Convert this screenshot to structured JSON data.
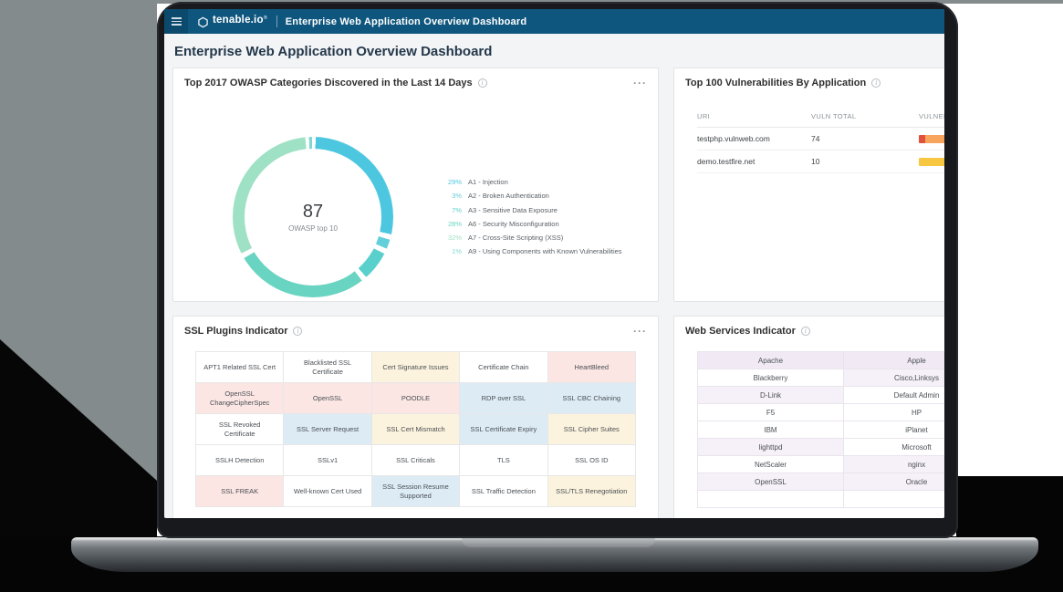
{
  "topbar": {
    "brand": "tenable.io",
    "reg": "®",
    "title": "Enterprise Web Application Overview Dashboard"
  },
  "page": {
    "title": "Enterprise Web Application Overview Dashboard"
  },
  "icons": {
    "menu": "hamburger-icon",
    "brand": "hexagon-logo-icon",
    "info": "info-circle-icon",
    "panel_menu": "ellipsis-icon"
  },
  "chart_data": {
    "type": "pie",
    "donut": true,
    "title": "Top 2017 OWASP Categories Discovered in the Last 14 Days",
    "center_value": "87",
    "center_label": "OWASP top 10",
    "legend_position": "right",
    "segments": [
      {
        "label": "A1 - Injection",
        "pct": 29,
        "color": "#4dc7e0"
      },
      {
        "label": "A2 - Broken Authentication",
        "pct": 3,
        "color": "#63cfda"
      },
      {
        "label": "A3 - Sensitive Data Exposure",
        "pct": 7,
        "color": "#5ad0cc"
      },
      {
        "label": "A6 - Security Misconfiguration",
        "pct": 28,
        "color": "#69d4c1"
      },
      {
        "label": "A7 - Cross-Site Scripting (XSS)",
        "pct": 32,
        "color": "#9fe1c5"
      },
      {
        "label": "A9 - Using Components with Known Vulnerabilities",
        "pct": 1,
        "color": "#7fd9d2"
      }
    ]
  },
  "owasp": {
    "title": "Top 2017 OWASP Categories Discovered in the Last 14 Days",
    "info": "i",
    "menu": "···"
  },
  "vuln": {
    "title": "Top 100 Vulnerabilities By Application",
    "info": "i",
    "menu": "···",
    "columns": [
      "URI",
      "VULN TOTAL",
      "VULNERABILITIES"
    ],
    "rows": [
      {
        "uri": "testphp.vulnweb.com",
        "total": "74",
        "bar": [
          {
            "color": "#e0523c",
            "width": 7
          },
          {
            "color": "#f9a45c",
            "width": 105
          }
        ]
      },
      {
        "uri": "demo.testfire.net",
        "total": "10",
        "bar": [
          {
            "color": "#f8c742",
            "width": 88
          }
        ]
      }
    ]
  },
  "ssl": {
    "title": "SSL Plugins Indicator",
    "info": "i",
    "menu": "···",
    "cells": [
      [
        "APT1 Related SSL Cert",
        "white"
      ],
      [
        "Blacklisted SSL Certificate",
        "white"
      ],
      [
        "Cert Signature Issues",
        "cream"
      ],
      [
        "Certificate Chain",
        "white"
      ],
      [
        "HeartBleed",
        "pink"
      ],
      [
        "OpenSSL ChangeCipherSpec",
        "pink"
      ],
      [
        "OpenSSL",
        "pink"
      ],
      [
        "POODLE",
        "pink"
      ],
      [
        "RDP over SSL",
        "blue"
      ],
      [
        "SSL CBC Chaining",
        "blue"
      ],
      [
        "SSL Revoked Certificate",
        "white"
      ],
      [
        "SSL Server Request",
        "blue"
      ],
      [
        "SSL Cert Mismatch",
        "cream"
      ],
      [
        "SSL Certificate Expiry",
        "blue"
      ],
      [
        "SSL Cipher Suites",
        "cream"
      ],
      [
        "SSLH Detection",
        "white"
      ],
      [
        "SSLv1",
        "white"
      ],
      [
        "SSL Criticals",
        "white"
      ],
      [
        "TLS",
        "white"
      ],
      [
        "SSL OS ID",
        "white"
      ],
      [
        "SSL FREAK",
        "pink"
      ],
      [
        "Well-known Cert Used",
        "white"
      ],
      [
        "SSL Session Resume Supported",
        "blue"
      ],
      [
        "SSL Traffic Detection",
        "white"
      ],
      [
        "SSL/TLS Renegotiation",
        "cream"
      ]
    ]
  },
  "web": {
    "title": "Web Services Indicator",
    "info": "i",
    "menu": "···",
    "rows": [
      [
        "Apache",
        "lavd",
        "Apple",
        "lavd"
      ],
      [
        "Blackberry",
        "white",
        "Cisco,Linksys",
        "lav"
      ],
      [
        "D-Link",
        "lav",
        "Default Admin",
        "white"
      ],
      [
        "F5",
        "white",
        "HP",
        "white"
      ],
      [
        "IBM",
        "white",
        "iPlanet",
        "white"
      ],
      [
        "lighttpd",
        "lav",
        "Microsoft",
        "white"
      ],
      [
        "NetScaler",
        "white",
        "nginx",
        "lav"
      ],
      [
        "OpenSSL",
        "lav",
        "Oracle",
        "lav"
      ],
      [
        "",
        "white",
        "",
        "white"
      ]
    ]
  },
  "colors": {
    "white": "#ffffff",
    "pink": "#fbe6e4",
    "blue": "#ddebf5",
    "cream": "#fcf3de",
    "lav": "#f6f0f8",
    "lavd": "#f1eaf4",
    "navy": "#0f567e",
    "accent_red": "#e0523c",
    "accent_orange": "#f9a45c",
    "accent_yellow": "#f8c742"
  }
}
